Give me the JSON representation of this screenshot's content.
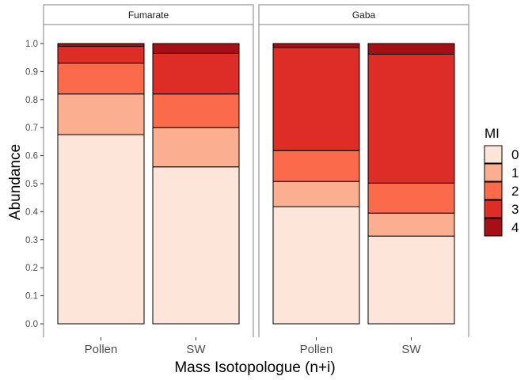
{
  "chart_data": {
    "type": "bar",
    "stacked": true,
    "ylabel": "Abundance",
    "xlabel": "Mass Isotopologue (n+i)",
    "ylim": [
      0,
      1.0
    ],
    "yticks": [
      "0.0",
      "0.1",
      "0.2",
      "0.3",
      "0.4",
      "0.5",
      "0.6",
      "0.7",
      "0.8",
      "0.9",
      "1.0"
    ],
    "legend": {
      "title": "MI",
      "position": "right",
      "items": [
        {
          "label": "0",
          "color": "#fee5d9"
        },
        {
          "label": "1",
          "color": "#fcae91"
        },
        {
          "label": "2",
          "color": "#fb6a4a"
        },
        {
          "label": "3",
          "color": "#de2d26"
        },
        {
          "label": "4",
          "color": "#a50f15"
        }
      ]
    },
    "panels": [
      {
        "strip": "Fumarate",
        "categories": [
          "Pollen",
          "SW"
        ],
        "stacks": [
          [
            0.675,
            0.145,
            0.11,
            0.06,
            0.01
          ],
          [
            0.56,
            0.14,
            0.12,
            0.145,
            0.035
          ]
        ]
      },
      {
        "strip": "Gaba",
        "categories": [
          "Pollen",
          "SW"
        ],
        "stacks": [
          [
            0.418,
            0.09,
            0.11,
            0.368,
            0.014
          ],
          [
            0.313,
            0.082,
            0.107,
            0.46,
            0.038
          ]
        ]
      }
    ],
    "grid": false
  }
}
